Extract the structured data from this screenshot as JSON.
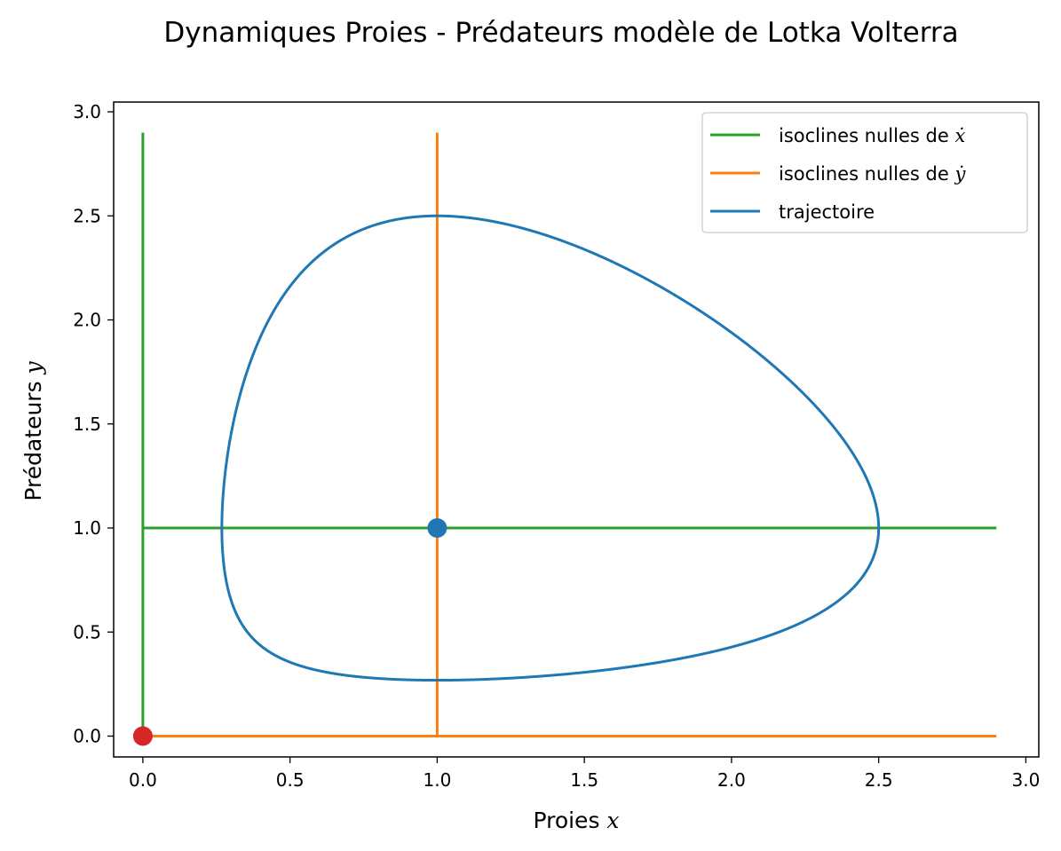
{
  "chart_data": {
    "type": "line",
    "title": "Dynamiques Proies - Prédateurs modèle de Lotka Volterra",
    "xlabel": {
      "text": "Proies ",
      "var": "x"
    },
    "ylabel": {
      "text": "Prédateurs ",
      "var": "y"
    },
    "xlim": [
      -0.1,
      3.05
    ],
    "ylim": [
      -0.1,
      3.05
    ],
    "xticks": [
      0.0,
      0.5,
      1.0,
      1.5,
      2.0,
      2.5,
      3.0
    ],
    "yticks": [
      0.0,
      0.5,
      1.0,
      1.5,
      2.0,
      2.5,
      3.0
    ],
    "xtick_labels": [
      "0.0",
      "0.5",
      "1.0",
      "1.5",
      "2.0",
      "2.5",
      "3.0"
    ],
    "ytick_labels": [
      "0.0",
      "0.5",
      "1.0",
      "1.5",
      "2.0",
      "2.5",
      "3.0"
    ],
    "grid": false,
    "legend_position": "top-right",
    "series": [
      {
        "name": "isoclines nulles de ẋ",
        "legend_prefix": "isoclines nulles de ",
        "legend_var": "ẋ",
        "color": "#2ca02c",
        "segments": [
          {
            "x": [
              0.0,
              0.0
            ],
            "y": [
              0.0,
              2.9
            ]
          },
          {
            "x": [
              0.0,
              2.9
            ],
            "y": [
              1.0,
              1.0
            ]
          }
        ]
      },
      {
        "name": "isoclines nulles de ẏ",
        "legend_prefix": "isoclines nulles de ",
        "legend_var": "ẏ",
        "color": "#ff7f0e",
        "segments": [
          {
            "x": [
              1.0,
              1.0
            ],
            "y": [
              0.0,
              2.9
            ]
          },
          {
            "x": [
              0.0,
              2.9
            ],
            "y": [
              0.0,
              0.0
            ]
          }
        ]
      },
      {
        "name": "trajectoire",
        "legend_prefix": "trajectoire",
        "legend_var": "",
        "color": "#1f77b4",
        "orbit_point": {
          "x": 2.5,
          "y": 1.0
        }
      }
    ],
    "points": [
      {
        "name": "equilibrium-coexistence",
        "x": 1.0,
        "y": 1.0,
        "color": "#1f77b4"
      },
      {
        "name": "equilibrium-origin",
        "x": 0.0,
        "y": 0.0,
        "color": "#d62728"
      }
    ]
  }
}
